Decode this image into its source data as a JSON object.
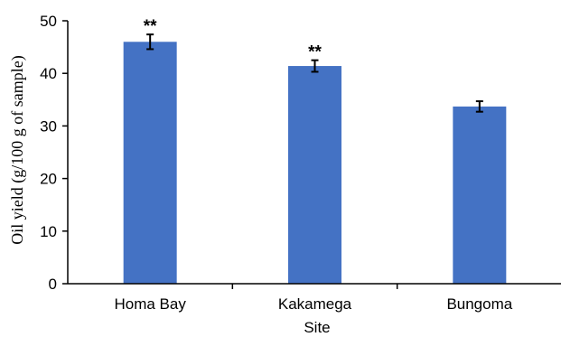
{
  "chart_data": {
    "type": "bar",
    "title": "",
    "xlabel": "Site",
    "ylabel": "Oil yield (g/100  g of sample)",
    "categories": [
      "Homa Bay",
      "Kakamega",
      "Bungoma"
    ],
    "series": [
      {
        "values": [
          46.0,
          41.4,
          33.7
        ],
        "error": [
          1.4,
          1.1,
          1.0
        ],
        "annotations": [
          "**",
          "**",
          ""
        ]
      }
    ],
    "ylim": [
      0,
      50
    ],
    "yticks": [
      "0",
      "10",
      "20",
      "30",
      "40",
      "50"
    ],
    "grid": false,
    "legend": "none",
    "bar_color": "#4472C4"
  }
}
